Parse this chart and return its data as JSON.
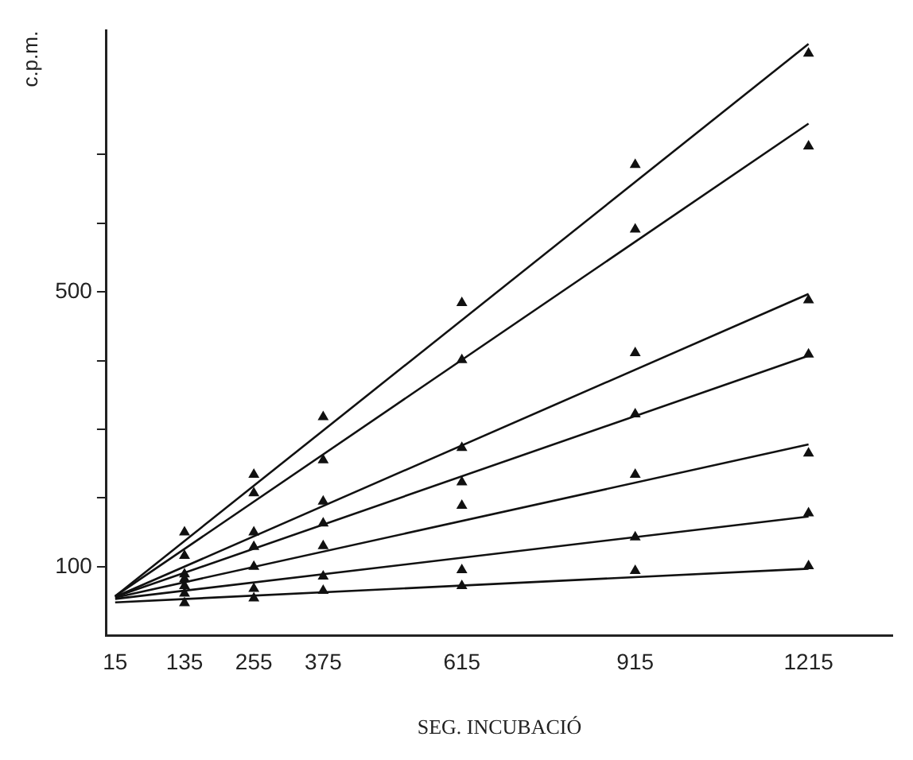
{
  "chart_data": {
    "type": "scatter",
    "xlabel": "SEG. INCUBACIÓ",
    "ylabel": "c.p.m.",
    "xlim": [
      0,
      1360
    ],
    "ylim": [
      0,
      880
    ],
    "xticks": [
      15,
      135,
      255,
      375,
      615,
      915,
      1215
    ],
    "yticks": [
      {
        "value": 100,
        "label": "100"
      },
      {
        "value": 200,
        "label": null
      },
      {
        "value": 300,
        "label": null
      },
      {
        "value": 400,
        "label": null
      },
      {
        "value": 500,
        "label": "500"
      },
      {
        "value": 600,
        "label": null
      },
      {
        "value": 700,
        "label": null
      }
    ],
    "grid": false,
    "legend": false,
    "series": [
      {
        "marker": "triangle",
        "color": "#111111",
        "x": [
          135,
          255,
          375,
          615,
          915,
          1215
        ],
        "values": [
          150,
          234,
          318,
          484,
          685,
          847
        ]
      },
      {
        "marker": "triangle",
        "color": "#111111",
        "x": [
          135,
          255,
          375,
          615,
          915,
          1215
        ],
        "values": [
          116,
          207,
          255,
          401,
          591,
          712
        ]
      },
      {
        "marker": "triangle",
        "color": "#111111",
        "x": [
          135,
          255,
          375,
          615,
          915,
          1215
        ],
        "values": [
          89,
          150,
          195,
          273,
          411,
          488
        ]
      },
      {
        "marker": "triangle",
        "color": "#111111",
        "x": [
          135,
          255,
          375,
          615,
          915,
          1215
        ],
        "values": [
          82,
          129,
          163,
          223,
          322,
          409
        ]
      },
      {
        "marker": "triangle",
        "color": "#111111",
        "x": [
          135,
          255,
          375,
          615,
          915,
          1215
        ],
        "values": [
          72,
          100,
          130,
          189,
          234,
          265
        ]
      },
      {
        "marker": "triangle",
        "color": "#111111",
        "x": [
          135,
          255,
          375,
          615,
          915,
          1215
        ],
        "values": [
          61,
          68,
          86,
          95,
          143,
          178
        ]
      },
      {
        "marker": "triangle",
        "color": "#111111",
        "x": [
          135,
          255,
          375,
          615,
          915,
          1215
        ],
        "values": [
          47,
          54,
          65,
          72,
          94,
          101
        ]
      },
      {
        "type": "line",
        "marker": "none",
        "color": "#111111",
        "x": [
          15,
          1215
        ],
        "values": [
          57,
          861
        ]
      },
      {
        "type": "line",
        "marker": "none",
        "color": "#111111",
        "x": [
          15,
          1215
        ],
        "values": [
          57,
          745
        ]
      },
      {
        "type": "line",
        "marker": "none",
        "color": "#111111",
        "x": [
          15,
          1215
        ],
        "values": [
          56,
          497
        ]
      },
      {
        "type": "line",
        "marker": "none",
        "color": "#111111",
        "x": [
          15,
          1215
        ],
        "values": [
          56,
          407
        ]
      },
      {
        "type": "line",
        "marker": "none",
        "color": "#111111",
        "x": [
          15,
          1215
        ],
        "values": [
          55,
          278
        ]
      },
      {
        "type": "line",
        "marker": "none",
        "color": "#111111",
        "x": [
          15,
          1215
        ],
        "values": [
          53,
          173
        ]
      },
      {
        "type": "line",
        "marker": "none",
        "color": "#111111",
        "x": [
          15,
          1215
        ],
        "values": [
          48,
          97
        ]
      }
    ]
  }
}
